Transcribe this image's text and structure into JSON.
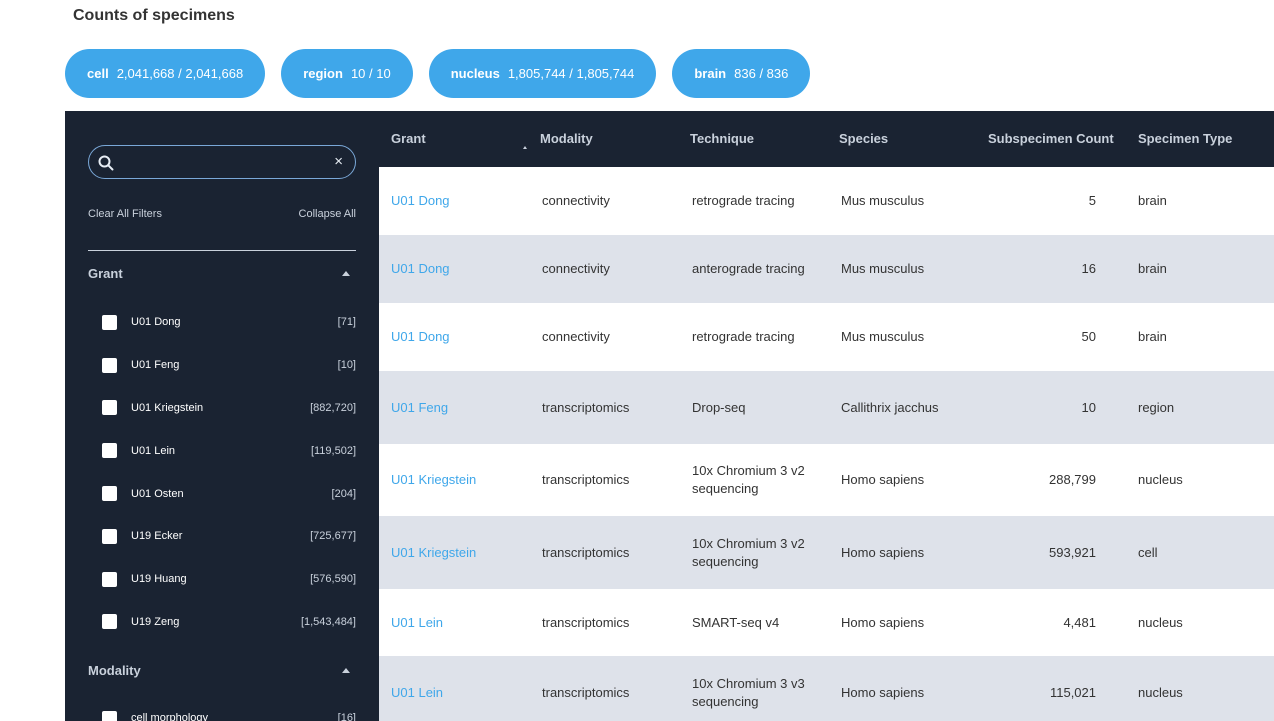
{
  "page_title": "Counts of specimens",
  "pills": [
    {
      "name": "cell",
      "value": "2,041,668 / 2,041,668"
    },
    {
      "name": "region",
      "value": "10 / 10"
    },
    {
      "name": "nucleus",
      "value": "1,805,744 / 1,805,744"
    },
    {
      "name": "brain",
      "value": "836 / 836"
    }
  ],
  "sidebar": {
    "search": {
      "value": "",
      "placeholder": ""
    },
    "clear_icon": "×",
    "clear_all": "Clear All Filters",
    "collapse_all": "Collapse All",
    "grant_section": {
      "title": "Grant",
      "items": [
        {
          "label": "U01 Dong",
          "count": "[71]"
        },
        {
          "label": "U01 Feng",
          "count": "[10]"
        },
        {
          "label": "U01 Kriegstein",
          "count": "[882,720]"
        },
        {
          "label": "U01 Lein",
          "count": "[119,502]"
        },
        {
          "label": "U01 Osten",
          "count": "[204]"
        },
        {
          "label": "U19 Ecker",
          "count": "[725,677]"
        },
        {
          "label": "U19 Huang",
          "count": "[576,590]"
        },
        {
          "label": "U19 Zeng",
          "count": "[1,543,484]"
        }
      ]
    },
    "modality_section": {
      "title": "Modality",
      "items": [
        {
          "label": "cell morphology",
          "count": "[16]"
        }
      ]
    }
  },
  "table": {
    "headers": {
      "grant": "Grant",
      "modality": "Modality",
      "technique": "Technique",
      "species": "Species",
      "count": "Subspecimen Count",
      "type": "Specimen Type"
    },
    "rows": [
      {
        "grant": "U01 Dong",
        "modality": "connectivity",
        "technique": "retrograde tracing",
        "species": "Mus musculus",
        "count": "5",
        "type": "brain"
      },
      {
        "grant": "U01 Dong",
        "modality": "connectivity",
        "technique": "anterograde tracing",
        "species": "Mus musculus",
        "count": "16",
        "type": "brain"
      },
      {
        "grant": "U01 Dong",
        "modality": "connectivity",
        "technique": "retrograde tracing",
        "species": "Mus musculus",
        "count": "50",
        "type": "brain"
      },
      {
        "grant": "U01 Feng",
        "modality": "transcriptomics",
        "technique": "Drop-seq",
        "species": "Callithrix jacchus",
        "count": "10",
        "type": "region"
      },
      {
        "grant": "U01 Kriegstein",
        "modality": "transcriptomics",
        "technique": "10x Chromium 3 v2 sequencing",
        "species": "Homo sapiens",
        "count": "288,799",
        "type": "nucleus"
      },
      {
        "grant": "U01 Kriegstein",
        "modality": "transcriptomics",
        "technique": "10x Chromium 3 v2 sequencing",
        "species": "Homo sapiens",
        "count": "593,921",
        "type": "cell"
      },
      {
        "grant": "U01 Lein",
        "modality": "transcriptomics",
        "technique": "SMART-seq v4",
        "species": "Homo sapiens",
        "count": "4,481",
        "type": "nucleus"
      },
      {
        "grant": "U01 Lein",
        "modality": "transcriptomics",
        "technique": "10x Chromium 3 v3 sequencing",
        "species": "Homo sapiens",
        "count": "115,021",
        "type": "nucleus"
      }
    ]
  }
}
